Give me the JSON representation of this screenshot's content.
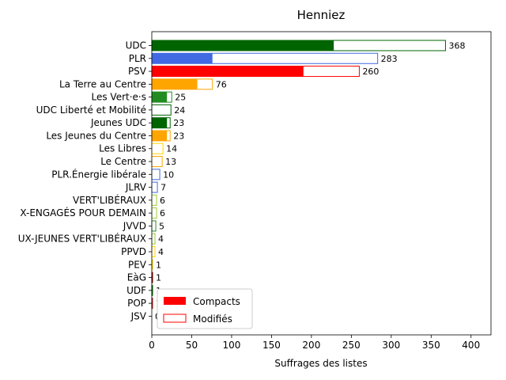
{
  "chart_data": {
    "type": "bar",
    "orientation": "horizontal",
    "title": "Henniez",
    "xlabel": "Suffrages des listes",
    "ylabel": "",
    "xlim": [
      0,
      425
    ],
    "xticks": [
      0,
      50,
      100,
      150,
      200,
      250,
      300,
      350,
      400
    ],
    "grid": false,
    "legend_placement": "lower-left",
    "legend": [
      {
        "label": "Compacts",
        "style": "filled",
        "color": "#ff0000"
      },
      {
        "label": "Modifiés",
        "style": "outline",
        "color": "#ff0000"
      }
    ],
    "bars": [
      {
        "category": "UDC",
        "total": 368,
        "compacts": 228,
        "color": "#006400",
        "label": "368"
      },
      {
        "category": "PLR",
        "total": 283,
        "compacts": 76,
        "color": "#4169e1",
        "label": "283"
      },
      {
        "category": "PSV",
        "total": 260,
        "compacts": 190,
        "color": "#ff0000",
        "label": "260"
      },
      {
        "category": "La Terre au Centre",
        "total": 76,
        "compacts": 57,
        "color": "#ffa500",
        "label": "76"
      },
      {
        "category": "Les Vert·e·s",
        "total": 25,
        "compacts": 19,
        "color": "#228b22",
        "label": "25"
      },
      {
        "category": "UDC Liberté et Mobilité",
        "total": 24,
        "compacts": 0,
        "color": "#006400",
        "label": "24"
      },
      {
        "category": "Jeunes UDC",
        "total": 23,
        "compacts": 19,
        "color": "#006400",
        "label": "23"
      },
      {
        "category": "Les Jeunes du Centre",
        "total": 23,
        "compacts": 19,
        "color": "#ffa500",
        "label": "23"
      },
      {
        "category": "Les Libres",
        "total": 14,
        "compacts": 0,
        "color": "#ffd700",
        "label": "14"
      },
      {
        "category": "Le Centre",
        "total": 13,
        "compacts": 0,
        "color": "#ffa500",
        "label": "13"
      },
      {
        "category": "PLR.Énergie libérale",
        "total": 10,
        "compacts": 0,
        "color": "#4169e1",
        "label": "10"
      },
      {
        "category": "JLRV",
        "total": 7,
        "compacts": 0,
        "color": "#4169e1",
        "label": "7"
      },
      {
        "category": "VERT'LIBÉRAUX",
        "total": 6,
        "compacts": 0,
        "color": "#9acd32",
        "label": "6"
      },
      {
        "category": "X-ENGAGÉS POUR DEMAIN",
        "total": 6,
        "compacts": 0,
        "color": "#9acd32",
        "label": "6"
      },
      {
        "category": "JVVD",
        "total": 5,
        "compacts": 0,
        "color": "#228b22",
        "label": "5"
      },
      {
        "category": "UX-JEUNES VERT'LIBÉRAUX",
        "total": 4,
        "compacts": 0,
        "color": "#9acd32",
        "label": "4"
      },
      {
        "category": "PPVD",
        "total": 4,
        "compacts": 0,
        "color": "#ffd700",
        "label": "4"
      },
      {
        "category": "PEV",
        "total": 1,
        "compacts": 0,
        "color": "#ffd700",
        "label": "1"
      },
      {
        "category": "EàG",
        "total": 1,
        "compacts": 1,
        "color": "#8b0000",
        "label": "1"
      },
      {
        "category": "UDF",
        "total": 1,
        "compacts": 0,
        "color": "#006400",
        "label": "1"
      },
      {
        "category": "POP",
        "total": 1,
        "compacts": 1,
        "color": "#b22222",
        "label": "1"
      },
      {
        "category": "JSV",
        "total": 0,
        "compacts": 0,
        "color": "#ff0000",
        "label": "0"
      }
    ]
  }
}
